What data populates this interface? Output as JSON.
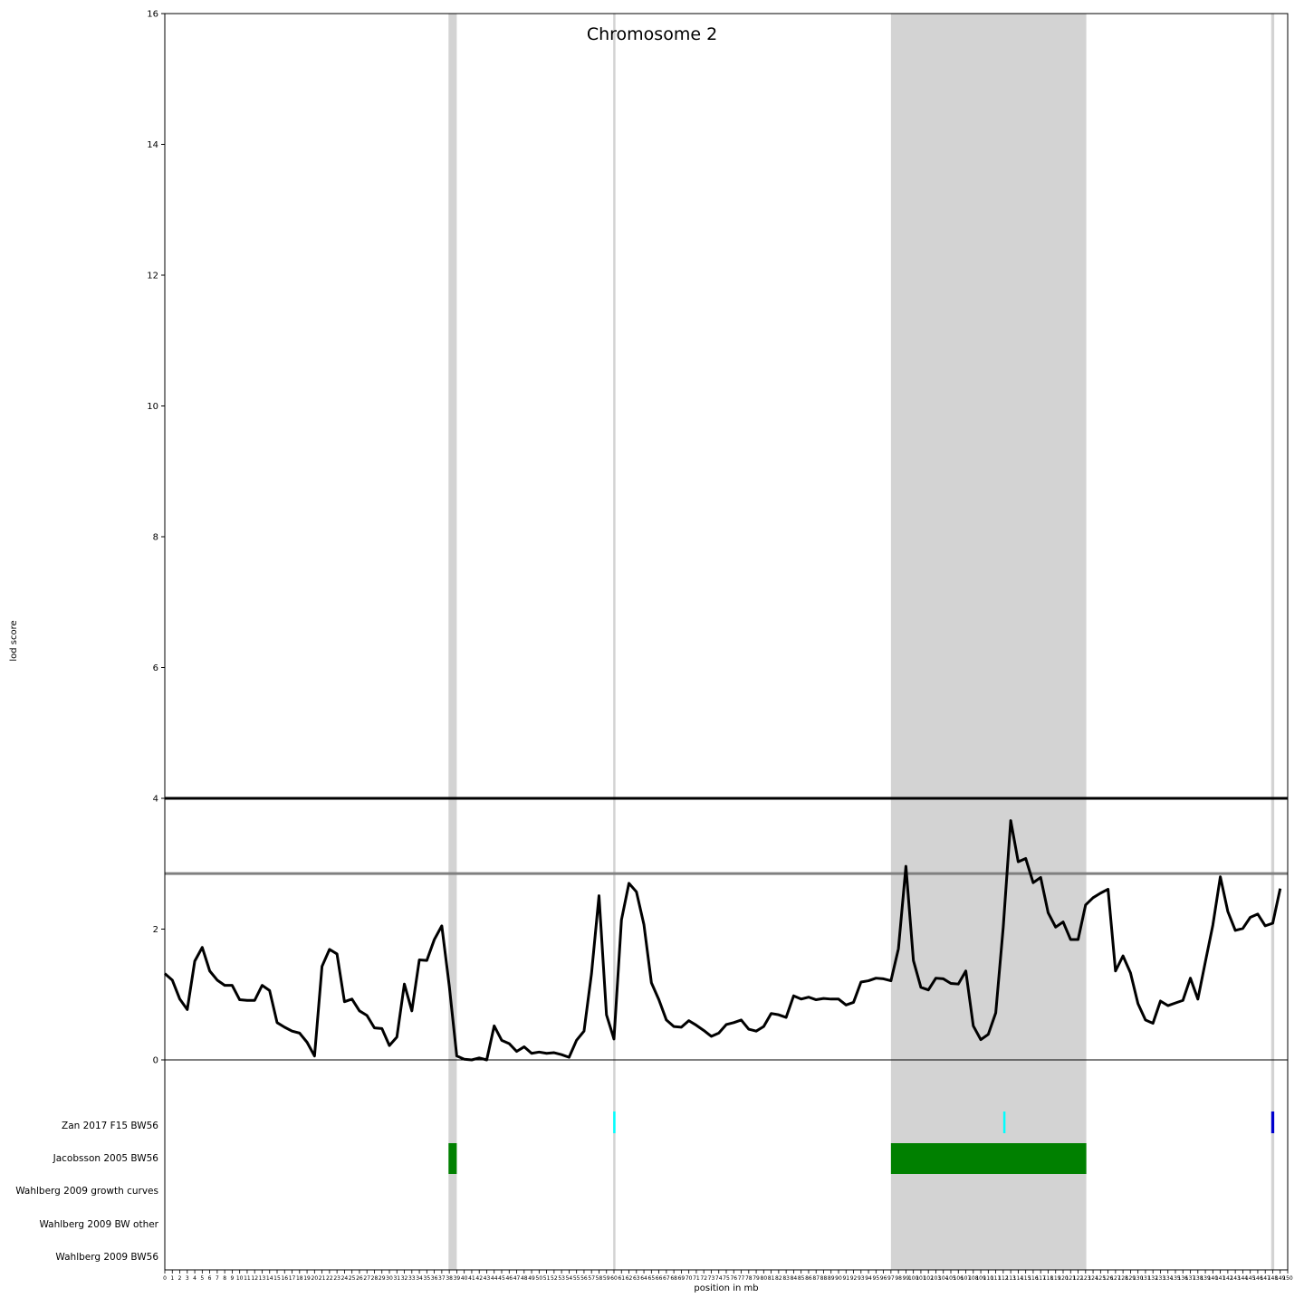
{
  "chart_data": {
    "type": "line",
    "title": "Chromosome 2",
    "xlabel": "position in mb",
    "ylabel": "lod score",
    "xlim": [
      0,
      150
    ],
    "ylim": [
      0,
      16
    ],
    "y_ticks": [
      0,
      2,
      4,
      6,
      8,
      10,
      12,
      14,
      16
    ],
    "x_ticks_from": 0,
    "x_ticks_to": 150,
    "grid": false,
    "line_color": "#000000",
    "thresholds": [
      {
        "value": 4.0,
        "color": "#000000"
      },
      {
        "value": 2.85,
        "color": "#808080"
      }
    ],
    "highlight_regions": [
      {
        "start": 37.9,
        "end": 39.0,
        "color": "#d3d3d3"
      },
      {
        "start": 59.9,
        "end": 60.2,
        "color": "#d3d3d3"
      },
      {
        "start": 97.0,
        "end": 123.1,
        "color": "#d3d3d3"
      },
      {
        "start": 147.8,
        "end": 148.2,
        "color": "#d3d3d3"
      }
    ],
    "tracks": [
      {
        "label": "Zan 2017 F15 BW56",
        "features": [
          {
            "start": 59.9,
            "end": 60.2,
            "color": "#00ffff"
          },
          {
            "start": 112.0,
            "end": 112.3,
            "color": "#00ffff"
          },
          {
            "start": 147.8,
            "end": 148.2,
            "color": "#0000cd"
          }
        ]
      },
      {
        "label": "Jacobsson 2005 BW56",
        "features": [
          {
            "start": 37.9,
            "end": 39.0,
            "color": "#008000"
          },
          {
            "start": 97.0,
            "end": 123.1,
            "color": "#008000"
          }
        ]
      },
      {
        "label": "Wahlberg 2009 growth curves",
        "features": []
      },
      {
        "label": "Wahlberg 2009 BW other",
        "features": []
      },
      {
        "label": "Wahlberg 2009 BW56",
        "features": []
      }
    ],
    "series": [
      {
        "x": [
          0,
          1,
          2,
          3,
          4,
          5,
          6,
          7,
          8,
          9,
          10,
          11,
          12,
          13,
          14,
          15,
          16,
          17,
          18,
          19,
          20,
          21,
          22,
          23,
          24,
          25,
          26,
          27,
          28,
          29,
          30,
          31,
          32,
          33,
          34,
          35,
          36,
          37,
          38,
          39,
          40,
          41,
          42,
          43,
          44,
          45,
          46,
          47,
          48,
          49,
          50,
          51,
          52,
          53,
          54,
          55,
          56,
          57,
          58,
          59,
          60,
          61,
          62,
          63,
          64,
          65,
          66,
          67,
          68,
          69,
          70,
          71,
          72,
          73,
          74,
          75,
          76,
          77,
          78,
          79,
          80,
          81,
          82,
          83,
          84,
          85,
          86,
          87,
          88,
          89,
          90,
          91,
          92,
          93,
          94,
          95,
          96,
          97,
          98,
          99,
          100,
          101,
          102,
          103,
          104,
          105,
          106,
          107,
          108,
          109,
          110,
          111,
          112,
          113,
          114,
          115,
          116,
          117,
          118,
          119,
          120,
          121,
          122,
          123,
          124,
          125,
          126,
          127,
          128,
          129,
          130,
          131,
          132,
          133,
          134,
          135,
          136,
          137,
          138,
          139,
          140,
          141,
          142,
          143,
          144,
          145,
          146,
          147,
          148,
          149
        ],
        "y": [
          1.32,
          1.22,
          0.93,
          0.77,
          1.51,
          1.72,
          1.36,
          1.22,
          1.14,
          1.14,
          0.92,
          0.91,
          0.91,
          1.14,
          1.06,
          0.57,
          0.5,
          0.44,
          0.41,
          0.27,
          0.06,
          1.43,
          1.69,
          1.62,
          0.89,
          0.93,
          0.75,
          0.68,
          0.49,
          0.48,
          0.22,
          0.35,
          1.16,
          0.75,
          1.53,
          1.52,
          1.84,
          2.05,
          1.13,
          0.06,
          0.01,
          0.0,
          0.03,
          0.0,
          0.52,
          0.3,
          0.25,
          0.13,
          0.2,
          0.1,
          0.12,
          0.1,
          0.11,
          0.08,
          0.04,
          0.3,
          0.44,
          1.32,
          2.51,
          0.69,
          0.32,
          2.14,
          2.7,
          2.57,
          2.07,
          1.18,
          0.92,
          0.61,
          0.51,
          0.5,
          0.6,
          0.53,
          0.45,
          0.36,
          0.41,
          0.54,
          0.57,
          0.61,
          0.47,
          0.44,
          0.51,
          0.71,
          0.69,
          0.65,
          0.98,
          0.93,
          0.96,
          0.92,
          0.94,
          0.93,
          0.93,
          0.84,
          0.88,
          1.19,
          1.21,
          1.25,
          1.24,
          1.21,
          1.7,
          2.96,
          1.52,
          1.11,
          1.07,
          1.25,
          1.24,
          1.17,
          1.16,
          1.36,
          0.52,
          0.31,
          0.39,
          0.72,
          2.03,
          3.66,
          3.03,
          3.08,
          2.71,
          2.79,
          2.25,
          2.03,
          2.11,
          1.84,
          1.84,
          2.37,
          2.48,
          2.55,
          2.61,
          1.36,
          1.59,
          1.33,
          0.86,
          0.61,
          0.56,
          0.9,
          0.83,
          0.87,
          0.91,
          1.25,
          0.93,
          1.5,
          2.06,
          2.8,
          2.27,
          1.98,
          2.01,
          2.18,
          2.23,
          2.05,
          2.09,
          2.62
        ]
      }
    ]
  }
}
